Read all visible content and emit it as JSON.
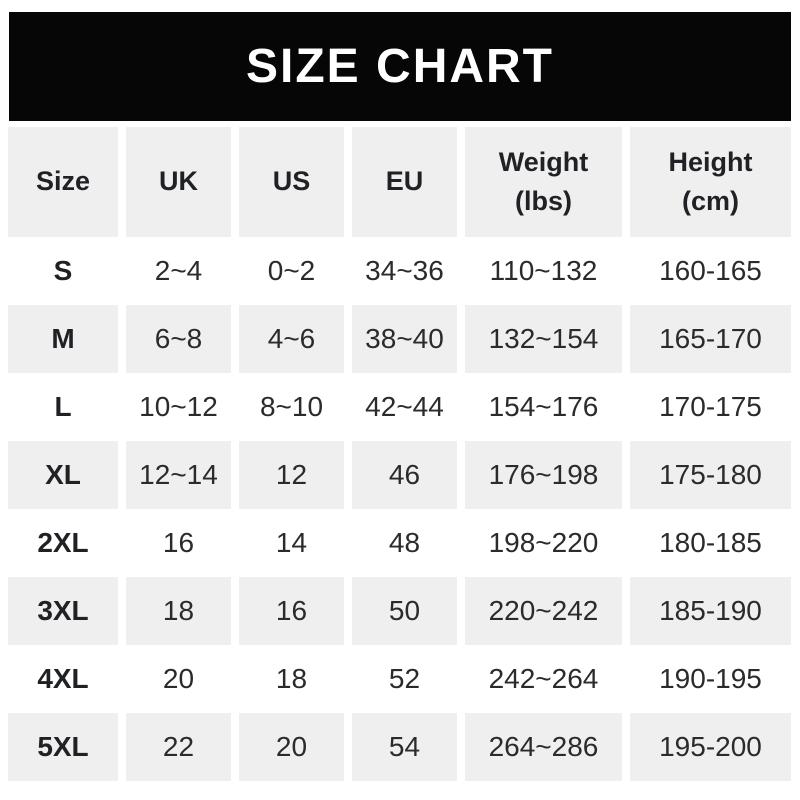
{
  "banner": {
    "title": "SIZE CHART"
  },
  "colors": {
    "banner_bg": "#060606",
    "banner_text": "#ffffff",
    "cell_shade": "#efefef",
    "page_bg": "#ffffff",
    "header_text": "#1f2125",
    "data_text": "#2b2b2d"
  },
  "table": {
    "headers": [
      "Size",
      "UK",
      "US",
      "EU",
      "Weight\n(lbs)",
      "Height\n(cm)"
    ]
  },
  "chart_data": {
    "type": "table",
    "title": "SIZE CHART",
    "columns": [
      "Size",
      "UK",
      "US",
      "EU",
      "Weight (lbs)",
      "Height (cm)"
    ],
    "rows": [
      [
        "S",
        "2~4",
        "0~2",
        "34~36",
        "110~132",
        "160-165"
      ],
      [
        "M",
        "6~8",
        "4~6",
        "38~40",
        "132~154",
        "165-170"
      ],
      [
        "L",
        "10~12",
        "8~10",
        "42~44",
        "154~176",
        "170-175"
      ],
      [
        "XL",
        "12~14",
        "12",
        "46",
        "176~198",
        "175-180"
      ],
      [
        "2XL",
        "16",
        "14",
        "48",
        "198~220",
        "180-185"
      ],
      [
        "3XL",
        "18",
        "16",
        "50",
        "220~242",
        "185-190"
      ],
      [
        "4XL",
        "20",
        "18",
        "52",
        "242~264",
        "190-195"
      ],
      [
        "5XL",
        "22",
        "20",
        "54",
        "264~286",
        "195-200"
      ]
    ]
  }
}
